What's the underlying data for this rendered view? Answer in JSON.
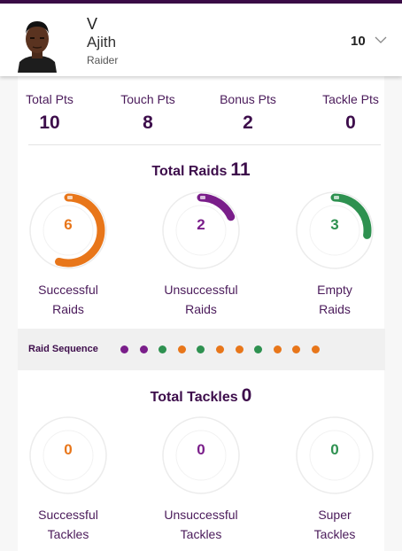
{
  "player": {
    "first_name": "V",
    "last_name": "Ajith",
    "role": "Raider",
    "jersey_number": "10"
  },
  "points": [
    {
      "label": "Total Pts",
      "value": "10"
    },
    {
      "label": "Touch Pts",
      "value": "8"
    },
    {
      "label": "Bonus Pts",
      "value": "2"
    },
    {
      "label": "Tackle Pts",
      "value": "0"
    }
  ],
  "raids": {
    "title": "Total Raids",
    "total": "11",
    "gauges": [
      {
        "value": "6",
        "line1": "Successful",
        "line2": "Raids",
        "fraction": 0.545,
        "color": "#e8761a"
      },
      {
        "value": "2",
        "line1": "Unsuccessful",
        "line2": "Raids",
        "fraction": 0.182,
        "color": "#7a1e8a"
      },
      {
        "value": "3",
        "line1": "Empty",
        "line2": "Raids",
        "fraction": 0.273,
        "color": "#2e9150"
      }
    ]
  },
  "raid_sequence": {
    "label": "Raid Sequence",
    "items": [
      "unsuccessful",
      "unsuccessful",
      "empty",
      "successful",
      "empty",
      "successful",
      "successful",
      "empty",
      "successful",
      "successful",
      "successful"
    ]
  },
  "tackles": {
    "title": "Total Tackles",
    "total": "0",
    "gauges": [
      {
        "value": "0",
        "line1": "Successful",
        "line2": "Tackles",
        "fraction": 0,
        "color": "#e8761a"
      },
      {
        "value": "0",
        "line1": "Unsuccessful",
        "line2": "Tackles",
        "fraction": 0,
        "color": "#7a1e8a"
      },
      {
        "value": "0",
        "line1": "Super",
        "line2": "Tackles",
        "fraction": 0,
        "color": "#2e9150"
      }
    ]
  },
  "colors": {
    "brand": "#3d0d4b",
    "successful": "#e8761a",
    "unsuccessful": "#7a1e8a",
    "empty": "#2e9150"
  }
}
